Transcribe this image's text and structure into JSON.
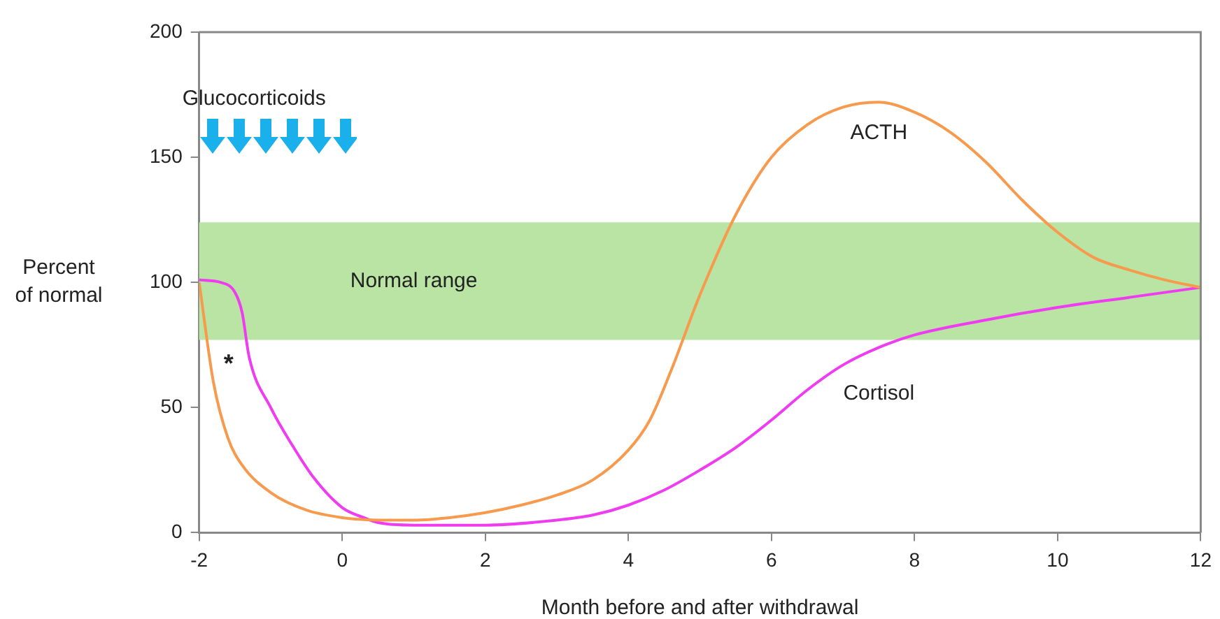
{
  "chart_data": {
    "type": "line",
    "xlabel": "Month before and after withdrawal",
    "ylabel": "Percent\nof normal",
    "xlim": [
      -2,
      12
    ],
    "xticks": [
      -2,
      0,
      2,
      4,
      6,
      8,
      10,
      12
    ],
    "ylim": [
      0,
      200
    ],
    "yticks": [
      0,
      50,
      100,
      150,
      200
    ],
    "grid": false,
    "legend": false,
    "marker": "none",
    "line_style": "solid",
    "series": [
      {
        "name": "ACTH",
        "color": "#f79a4e",
        "x": [
          -2,
          -1.8,
          -1.6,
          -1.4,
          -1,
          -0.5,
          0,
          0.5,
          1,
          1.5,
          2,
          2.5,
          3,
          3.5,
          4,
          4.3,
          4.6,
          5,
          5.5,
          6,
          6.5,
          7,
          7.5,
          8,
          8.5,
          9,
          9.5,
          10,
          10.5,
          11,
          11.5,
          12
        ],
        "values": [
          100,
          60,
          38,
          27,
          16,
          9,
          6,
          5,
          5,
          6,
          8,
          11,
          15,
          21,
          33,
          45,
          65,
          95,
          127,
          150,
          163,
          170,
          172,
          168,
          160,
          148,
          133,
          120,
          110,
          105,
          101,
          98
        ]
      },
      {
        "name": "Cortisol",
        "color": "#f03cf0",
        "x": [
          -2,
          -1.7,
          -1.5,
          -1.4,
          -1.3,
          -1,
          -0.7,
          -0.4,
          0,
          0.3,
          0.5,
          1,
          2,
          3,
          3.5,
          4,
          4.5,
          5,
          5.5,
          6,
          6.5,
          7,
          7.5,
          8,
          9,
          10,
          11,
          12
        ],
        "values": [
          101,
          100,
          96,
          88,
          70,
          50,
          35,
          22,
          10,
          6,
          4,
          3,
          3,
          5,
          7,
          11,
          17,
          25,
          34,
          45,
          57,
          67,
          74,
          79,
          85,
          90,
          94,
          98
        ]
      }
    ],
    "bands": [
      {
        "axis": "y",
        "from": 77,
        "to": 124,
        "label": "Normal range",
        "color": "#b9e4a4"
      }
    ],
    "annotations": [
      "Glucocorticoids",
      "*"
    ]
  }
}
